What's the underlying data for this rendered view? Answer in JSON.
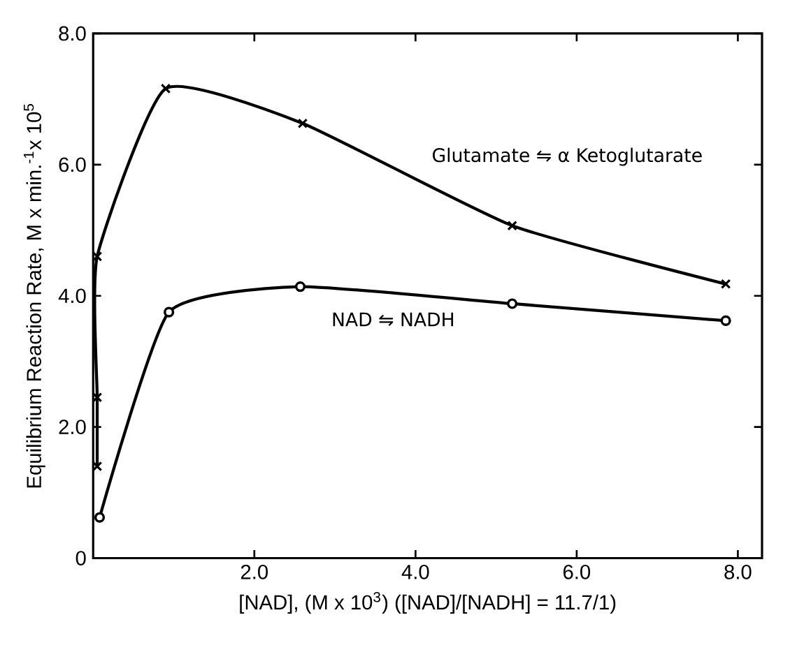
{
  "chart_data": {
    "type": "line",
    "xlabel": "[NAD], (M x 10$^{3}$)  ([NAD]/[NADH] = 11.7/1)",
    "ylabel": "Equilibrium Reaction Rate, M x min.$^{-1}$x 10$^{5}$",
    "xlim": [
      0,
      8.3
    ],
    "ylim": [
      0,
      8
    ],
    "xticks": [
      {
        "value": 2,
        "label": "2.0"
      },
      {
        "value": 4,
        "label": "4.0"
      },
      {
        "value": 6,
        "label": "6.0"
      },
      {
        "value": 8,
        "label": "8.0"
      }
    ],
    "yticks": [
      0,
      {
        "value": 2,
        "label": "2.0"
      },
      {
        "value": 4,
        "label": "4.0"
      },
      {
        "value": 6,
        "label": "6.0"
      },
      {
        "value": 8,
        "label": "8.0"
      }
    ],
    "line_style": "solid",
    "grid": false,
    "legend": false,
    "series": [
      {
        "name": "Glutamate ⇋ α Ketoglutarate",
        "color": "#000000",
        "marker": "cross",
        "x": [
          0.05,
          0.05,
          0.05,
          0.9,
          2.6,
          5.2,
          7.85
        ],
        "values": [
          1.4,
          2.45,
          4.6,
          7.16,
          6.63,
          5.07,
          4.18
        ]
      },
      {
        "name": "NAD ⇋ NADH",
        "color": "#000000",
        "marker": "circle",
        "x": [
          0.08,
          0.94,
          2.57,
          5.2,
          7.85
        ],
        "values": [
          0.62,
          3.75,
          4.14,
          3.88,
          3.62
        ]
      }
    ]
  }
}
